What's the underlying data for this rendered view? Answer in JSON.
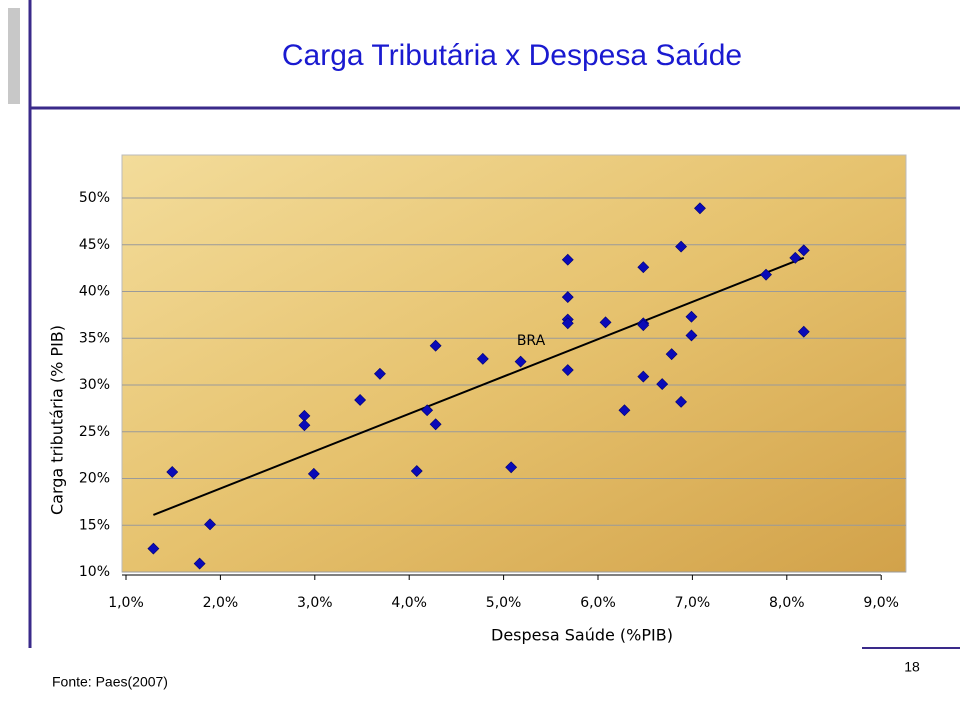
{
  "chart_data": {
    "type": "scatter",
    "title": "Carga Tributária x Despesa Saúde",
    "x_label": "Despesa Saúde (%PIB)",
    "y_label": "Carga tributária (% PIB)",
    "annotation": "BRA",
    "xlim": [
      1,
      9.27
    ],
    "ylim": [
      10,
      54
    ],
    "xticks": [
      {
        "value": 1,
        "label": "1,0%"
      },
      {
        "value": 2,
        "label": "2,0%"
      },
      {
        "value": 3,
        "label": "3,0%"
      },
      {
        "value": 4,
        "label": "4,0%"
      },
      {
        "value": 5,
        "label": "5,0%"
      },
      {
        "value": 6,
        "label": "6,0%"
      },
      {
        "value": 7,
        "label": "7,0%"
      },
      {
        "value": 8,
        "label": "8,0%"
      },
      {
        "value": 9,
        "label": "9,0%"
      }
    ],
    "yticks": [
      {
        "value": 10,
        "label": "10%"
      },
      {
        "value": 15,
        "label": "15%"
      },
      {
        "value": 20,
        "label": "20%"
      },
      {
        "value": 25,
        "label": "25%"
      },
      {
        "value": 30,
        "label": "30%"
      },
      {
        "value": 35,
        "label": "35%"
      },
      {
        "value": 40,
        "label": "40%"
      },
      {
        "value": 45,
        "label": "45%"
      },
      {
        "value": 50,
        "label": "50%"
      }
    ],
    "grid": true,
    "color": "#0a0ab8",
    "x": [
      1.29,
      1.49,
      1.78,
      1.89,
      2.89,
      2.89,
      2.99,
      3.48,
      3.69,
      4.08,
      4.19,
      4.28,
      4.28,
      4.78,
      5.08,
      5.18,
      5.68,
      5.68,
      5.68,
      5.68,
      5.68,
      6.08,
      6.28,
      6.48,
      6.48,
      6.48,
      6.48,
      6.68,
      6.78,
      6.88,
      6.88,
      6.99,
      6.99,
      7.08,
      7.78,
      8.09,
      8.18,
      8.18
    ],
    "y": [
      12.5,
      20.7,
      10.9,
      15.1,
      26.7,
      25.7,
      20.5,
      28.4,
      31.2,
      20.8,
      27.3,
      34.2,
      25.8,
      32.8,
      21.2,
      32.5,
      43.4,
      39.4,
      37.0,
      36.6,
      31.6,
      36.7,
      27.3,
      42.6,
      36.6,
      36.4,
      30.9,
      30.1,
      33.3,
      44.8,
      28.2,
      37.3,
      35.3,
      48.9,
      41.8,
      43.6,
      44.4,
      35.7
    ],
    "trendline": {
      "x": [
        1.29,
        8.18
      ],
      "y": [
        16.1,
        43.6
      ],
      "color": "#000000"
    }
  },
  "source": "Fonte: Paes(2007)",
  "page_number": "18"
}
